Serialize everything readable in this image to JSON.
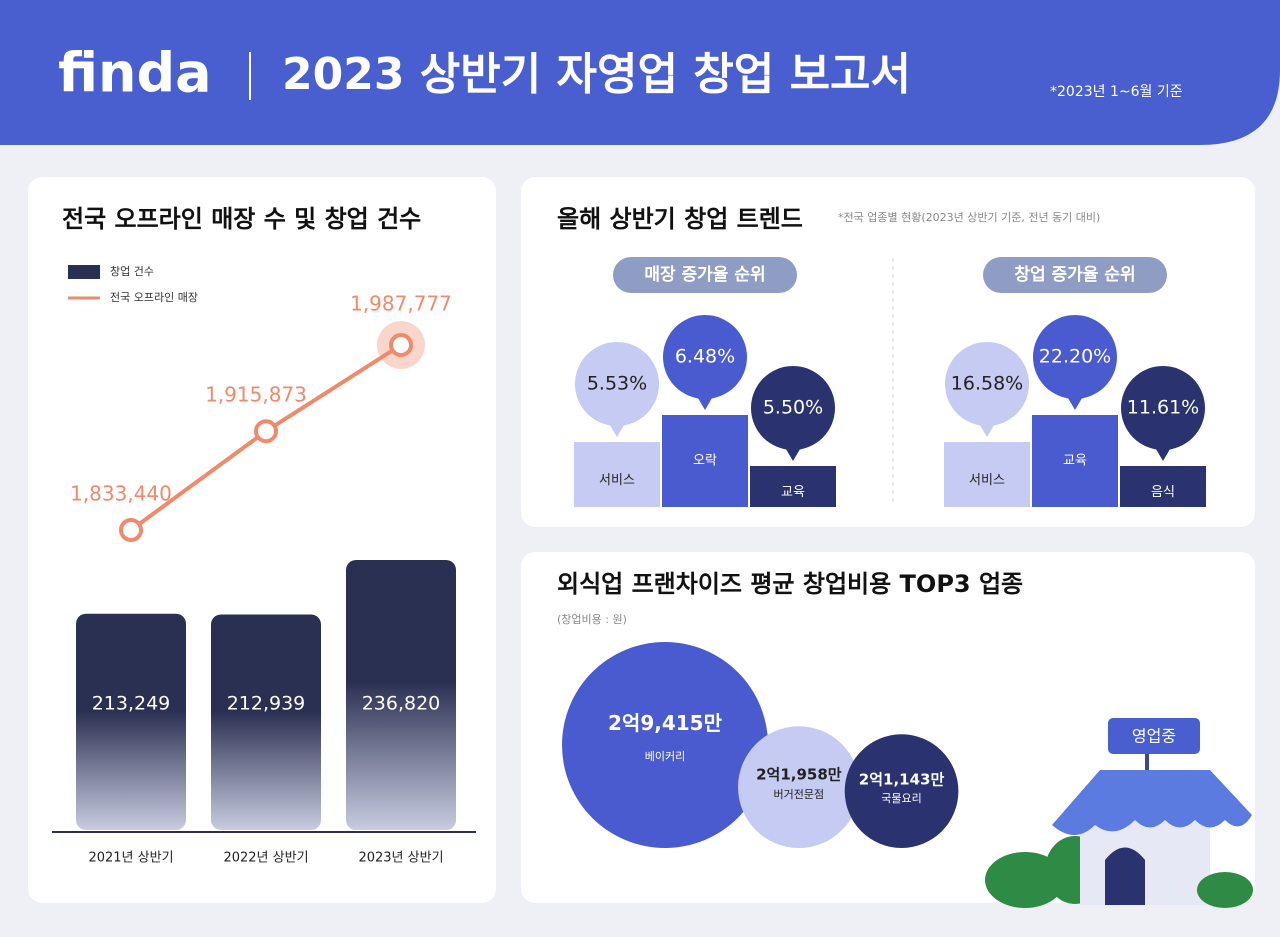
{
  "header": {
    "logo": "finda",
    "title": "2023 상반기 자영업 창업 보고서",
    "note": "*2023년 1~6월 기준"
  },
  "chart_data": [
    {
      "type": "bar-line",
      "title": "전국 오프라인 매장 수 및 창업 건수",
      "categories": [
        "2021년 상반기",
        "2022년 상반기",
        "2023년 상반기"
      ],
      "series": [
        {
          "name": "창업 건수",
          "type": "bar",
          "color": "#2a3052",
          "values": [
            213249,
            212939,
            236820
          ],
          "value_labels": [
            "213,249",
            "212,939",
            "236,820"
          ]
        },
        {
          "name": "전국 오프라인 매장",
          "type": "line",
          "color": "#ef8a6b",
          "values": [
            1833440,
            1915873,
            1987777
          ],
          "value_labels": [
            "1,833,440",
            "1,915,873",
            "1,987,777"
          ]
        }
      ]
    },
    {
      "type": "podium",
      "title": "올해 상반기 창업 트렌드",
      "subtitle": "*전국 업종별 현황(2023년 상반기 기준, 전년 동기 대비)",
      "colors": [
        "#4a5bd0",
        "#c5cbf2",
        "#2b3270"
      ],
      "panels": [
        {
          "title": "매장 증가율 순위",
          "categories": [
            "서비스",
            "오락",
            "교육"
          ],
          "values": [
            5.53,
            6.48,
            5.5
          ],
          "value_labels": [
            "5.53%",
            "6.48%",
            "5.50%"
          ]
        },
        {
          "title": "창업 증가율 순위",
          "categories": [
            "서비스",
            "교육",
            "음식"
          ],
          "values": [
            16.58,
            22.2,
            11.61
          ],
          "value_labels": [
            "16.58%",
            "22.20%",
            "11.61%"
          ]
        }
      ]
    },
    {
      "type": "bubble",
      "title": "외식업 프랜차이즈 평균 창업비용 TOP3 업종",
      "subtitle": "(창업비용 : 원)",
      "categories": [
        "베이커리",
        "버거전문점",
        "국물요리"
      ],
      "values": [
        294150000,
        219580000,
        211430000
      ],
      "value_labels": [
        "2억9,415만",
        "2억1,958만",
        "2억1,143만"
      ],
      "colors": [
        "#4a5bd0",
        "#c5cbf2",
        "#2b3270"
      ]
    }
  ],
  "decor": {
    "sign": "영업중"
  }
}
